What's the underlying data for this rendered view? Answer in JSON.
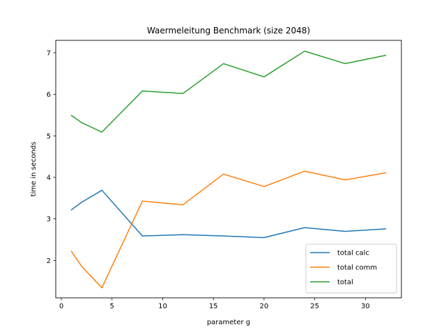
{
  "chart_data": {
    "type": "line",
    "title": "Waermeleitung Benchmark (size 2048)",
    "xlabel": "parameter g",
    "ylabel": "time in seconds",
    "xlim": [
      -0.55,
      33.55
    ],
    "ylim": [
      1.1,
      7.3
    ],
    "x_ticks": [
      0,
      5,
      10,
      15,
      20,
      25,
      30
    ],
    "y_ticks": [
      2,
      3,
      4,
      5,
      6,
      7
    ],
    "grid": false,
    "legend_position": "lower-right",
    "x": [
      1,
      2,
      4,
      8,
      12,
      16,
      20,
      24,
      28,
      32
    ],
    "series": [
      {
        "name": "total calc",
        "color": "#1f77b4",
        "values": [
          3.22,
          3.4,
          3.69,
          2.59,
          2.62,
          2.59,
          2.55,
          2.79,
          2.7,
          2.76
        ]
      },
      {
        "name": "total comm",
        "color": "#ff7f0e",
        "values": [
          2.22,
          1.86,
          1.34,
          3.43,
          3.34,
          4.08,
          3.78,
          4.15,
          3.94,
          4.11
        ]
      },
      {
        "name": "total",
        "color": "#2ca02c",
        "values": [
          5.49,
          5.32,
          5.09,
          6.08,
          6.02,
          6.74,
          6.42,
          7.04,
          6.74,
          6.94
        ]
      }
    ]
  }
}
